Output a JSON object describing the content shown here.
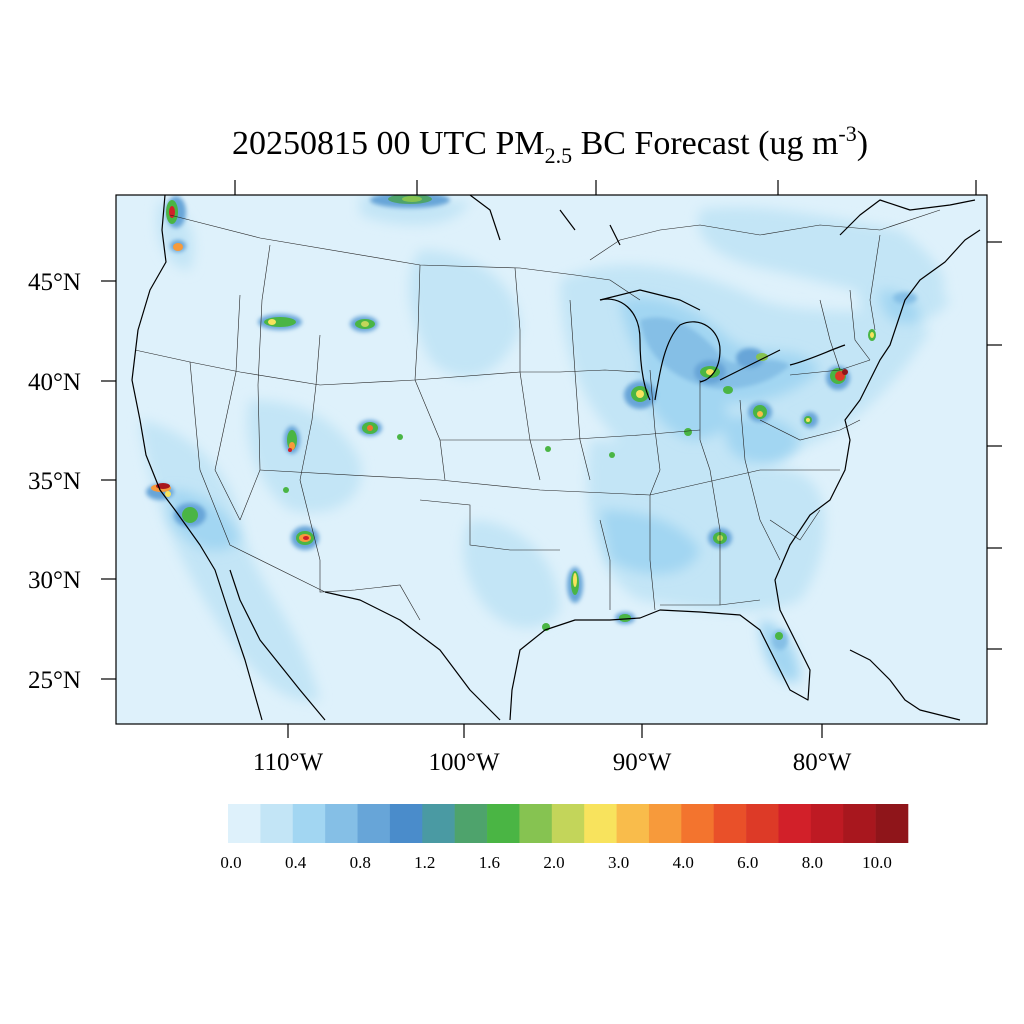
{
  "title": {
    "main": "20250815 00 UTC PM",
    "sub": "2.5",
    "mid": " BC Forecast (ug m",
    "sup": "-3",
    "end": ")"
  },
  "axes": {
    "lat_labels": [
      "45°N",
      "40°N",
      "35°N",
      "30°N",
      "25°N"
    ],
    "lon_labels": [
      "110°W",
      "100°W",
      "90°W",
      "80°W"
    ]
  },
  "colorbar": {
    "colors": [
      "#def1fb",
      "#c3e5f6",
      "#a2d6f2",
      "#85bfe6",
      "#67a5d8",
      "#4a8ccb",
      "#4a9aa3",
      "#4ea36c",
      "#4ab544",
      "#86c351",
      "#c3d55a",
      "#f8e35d",
      "#f9bc4b",
      "#f79a3b",
      "#f3742e",
      "#e95029",
      "#dd3a27",
      "#d22029",
      "#be1a23",
      "#a8171e",
      "#8f151a"
    ],
    "labels": [
      "0.0",
      "0.4",
      "0.8",
      "1.2",
      "1.6",
      "2.0",
      "3.0",
      "4.0",
      "6.0",
      "8.0",
      "10.0"
    ]
  },
  "legend_colors": {
    "background": "#def1fb",
    "light_blue": "#c3e5f6",
    "mid_blue": "#a2d6f2",
    "blue": "#85bfe6",
    "deep_blue": "#67a5d8",
    "green": "#4ea36c",
    "bright_green": "#4ab544",
    "yellow": "#f8e35d",
    "orange": "#f79a3b",
    "red": "#d22029",
    "dark_red": "#8f151a"
  }
}
